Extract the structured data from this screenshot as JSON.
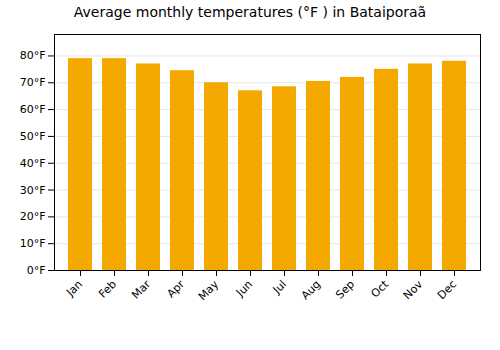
{
  "chart_data": {
    "type": "bar",
    "title": "Average monthly temperatures (°F ) in Bataiporaã",
    "categories": [
      "Jan",
      "Feb",
      "Mar",
      "Apr",
      "May",
      "Jun",
      "Jul",
      "Aug",
      "Sep",
      "Oct",
      "Nov",
      "Dec"
    ],
    "values": [
      79,
      79,
      77,
      74.5,
      70,
      67,
      68.5,
      70.5,
      72,
      75,
      77,
      78
    ],
    "color": "#F5A800",
    "ylim": [
      0,
      88
    ],
    "yticks": [
      {
        "value": 0,
        "label": "0°F"
      },
      {
        "value": 10,
        "label": "10°F"
      },
      {
        "value": 20,
        "label": "20°F"
      },
      {
        "value": 30,
        "label": "30°F"
      },
      {
        "value": 40,
        "label": "40°F"
      },
      {
        "value": 50,
        "label": "50°F"
      },
      {
        "value": 60,
        "label": "60°F"
      },
      {
        "value": 70,
        "label": "70°F"
      },
      {
        "value": 80,
        "label": "80°F"
      }
    ],
    "grid": true
  }
}
